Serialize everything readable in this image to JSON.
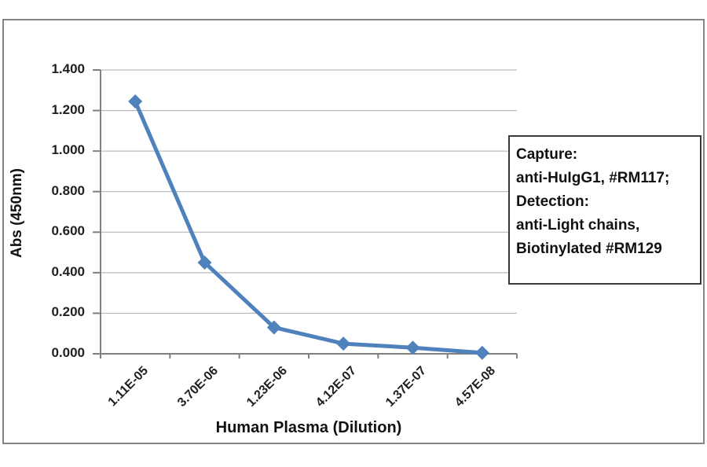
{
  "chart_data": {
    "type": "line",
    "title": "",
    "xlabel": "Human Plasma (Dilution)",
    "ylabel": "Abs (450nm)",
    "categories": [
      "1.11E-05",
      "3.70E-06",
      "1.23E-06",
      "4.12E-07",
      "1.37E-07",
      "4.57E-08"
    ],
    "series": [
      {
        "name": "Abs (450nm)",
        "values": [
          1.245,
          0.45,
          0.13,
          0.05,
          0.03,
          0.005
        ]
      }
    ],
    "y_ticks": [
      "1.400",
      "1.200",
      "1.000",
      "0.800",
      "0.600",
      "0.400",
      "0.200",
      "0.000"
    ],
    "ylim": [
      0,
      1.4
    ],
    "grid": true,
    "legend": "none",
    "marker": "diamond",
    "colors": {
      "line": "#4F81BD",
      "marker": "#4F81BD",
      "gridline": "#ABABAB",
      "axis": "#808080",
      "text": "#1a1a1a"
    }
  },
  "annotation": {
    "lines": [
      "Capture:",
      "anti-HuIgG1, #RM117;",
      "Detection:",
      "anti-Light chains,",
      "Biotinylated #RM129"
    ]
  }
}
